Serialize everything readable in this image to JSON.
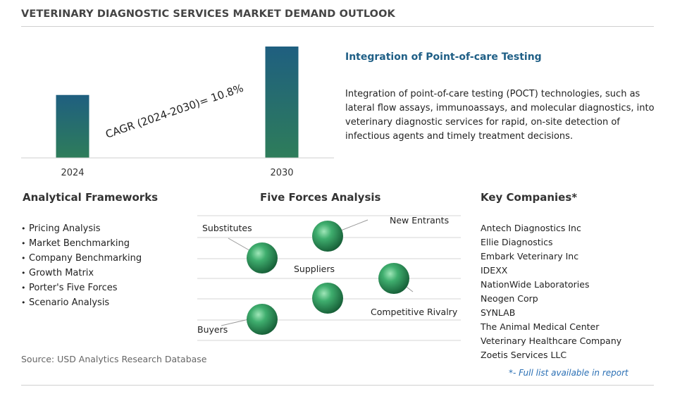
{
  "title": "VETERINARY DIAGNOSTIC SERVICES MARKET DEMAND OUTLOOK",
  "chart_data": {
    "type": "bar",
    "categories": [
      "2024",
      "2030"
    ],
    "values": [
      1.0,
      1.77
    ],
    "annotation": "CAGR (2024-2030)=  10.8%",
    "bar_color_top": "#1f5f80",
    "bar_color_bottom": "#2e7d5a"
  },
  "highlight": {
    "title": "Integration of Point-of-care Testing",
    "text": "Integration of point-of-care testing (POCT) technologies, such as lateral flow assays, immunoassays, and molecular diagnostics, into veterinary diagnostic services for rapid, on-site detection of infectious agents and timely treatment decisions."
  },
  "frameworks": {
    "title": "Analytical Frameworks",
    "items": [
      "Pricing Analysis",
      "Market Benchmarking",
      "Company Benchmarking",
      "Growth Matrix",
      "Porter's Five Forces",
      "Scenario Analysis"
    ]
  },
  "forces": {
    "title": "Five Forces Analysis",
    "labels": {
      "substitutes": "Substitutes",
      "new_entrants": "New Entrants",
      "suppliers": "Suppliers",
      "competitive_rivalry": "Competitive Rivalry",
      "buyers": "Buyers"
    },
    "sphere_color": "#2e8b57"
  },
  "companies": {
    "title": "Key Companies*",
    "items": [
      "Antech Diagnostics Inc",
      "Ellie Diagnostics",
      "Embark Veterinary Inc",
      "IDEXX",
      "NationWide Laboratories",
      "Neogen Corp",
      "SYNLAB",
      "The Animal Medical Center",
      "Veterinary Healthcare Company",
      "Zoetis Services LLC"
    ],
    "footnote": "*- Full list available in report"
  },
  "source": "Source: USD Analytics Research Database"
}
